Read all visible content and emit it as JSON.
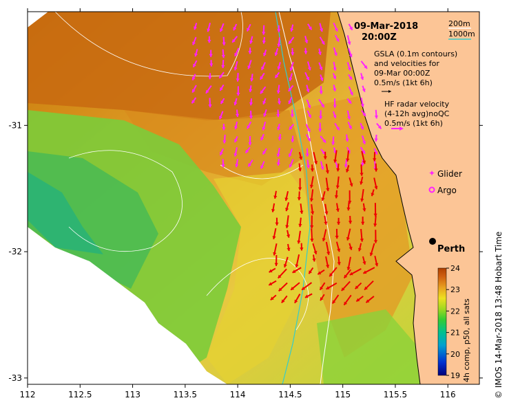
{
  "map": {
    "date_label": "09-Mar-2018",
    "time_label": "20:00Z",
    "depth_legend": [
      {
        "label": "200m",
        "color": "#ffffff"
      },
      {
        "label": "1000m",
        "color": "#33cccc"
      }
    ],
    "gsla_text": [
      "GSLA (0.1m contours)",
      "and velocities for",
      "09-Mar 00:00Z",
      "0.5m/s (1kt 6h)"
    ],
    "hf_text": [
      "HF radar velocity",
      "(4-12h avg)noQC",
      "0.5m/s (1kt 6h)"
    ],
    "glider_label": "Glider",
    "argo_label": "Argo",
    "city_label": "Perth",
    "colorbar_title": "4h comp, p50, all sats",
    "colorbar_ticks": [
      "19",
      "20",
      "21",
      "22",
      "23",
      "24"
    ],
    "colorbar_range": [
      19,
      24
    ],
    "credit": "© IMOS 14-Mar-2018 13:48 Hobart Time",
    "x_ticks": [
      "112",
      "112.5",
      "113",
      "113.5",
      "114",
      "114.5",
      "115",
      "115.5",
      "116"
    ],
    "y_ticks": [
      "-31",
      "-32",
      "-33"
    ],
    "lon_range": [
      112,
      116.3
    ],
    "lat_range": [
      -33.05,
      -30.1
    ],
    "colors": {
      "land": "#fcc596",
      "arrow_gsla": "#ff22ff",
      "arrow_hf": "#ee0000",
      "contour_200m": "#ffffff",
      "contour_1000m": "#33cccc",
      "nodata": "#ffffff"
    }
  }
}
